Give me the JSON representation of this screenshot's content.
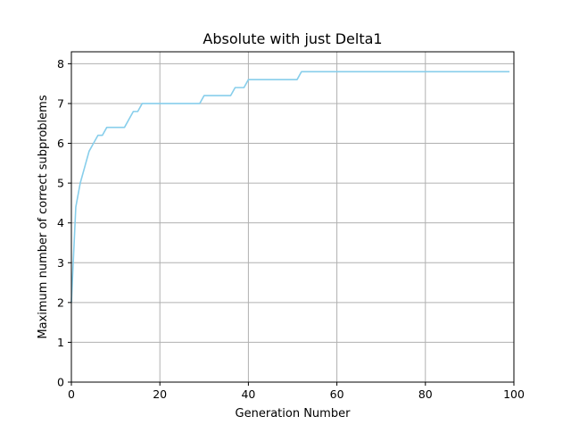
{
  "chart_data": {
    "type": "line",
    "title": "Absolute with just Delta1",
    "xlabel": "Generation Number",
    "ylabel": "Maximum number of correct subproblems",
    "xlim": [
      0,
      100
    ],
    "ylim": [
      0,
      8.3
    ],
    "xticks": [
      0,
      20,
      40,
      60,
      80,
      100
    ],
    "yticks": [
      0,
      1,
      2,
      3,
      4,
      5,
      6,
      7,
      8
    ],
    "grid": true,
    "colors": {
      "line": "#87ceeb",
      "grid": "#b0b0b0",
      "axes": "#000000"
    },
    "series": [
      {
        "x": [
          0,
          1,
          2,
          3,
          4,
          5,
          6,
          7,
          8,
          9,
          10,
          11,
          12,
          13,
          14,
          15,
          16,
          17,
          18,
          19,
          20,
          21,
          22,
          23,
          24,
          25,
          26,
          27,
          28,
          29,
          30,
          31,
          32,
          33,
          34,
          35,
          36,
          37,
          38,
          39,
          40,
          41,
          42,
          43,
          44,
          45,
          46,
          47,
          48,
          49,
          50,
          51,
          52,
          53,
          54,
          55,
          56,
          57,
          58,
          59,
          60,
          61,
          62,
          63,
          64,
          65,
          66,
          67,
          68,
          69,
          70,
          71,
          72,
          73,
          74,
          75,
          76,
          77,
          78,
          79,
          80,
          81,
          82,
          83,
          84,
          85,
          86,
          87,
          88,
          89,
          90,
          91,
          92,
          93,
          94,
          95,
          96,
          97,
          98,
          99
        ],
        "values": [
          2.0,
          4.4,
          5.0,
          5.4,
          5.8,
          6.0,
          6.2,
          6.2,
          6.4,
          6.4,
          6.4,
          6.4,
          6.4,
          6.6,
          6.8,
          6.8,
          7.0,
          7.0,
          7.0,
          7.0,
          7.0,
          7.0,
          7.0,
          7.0,
          7.0,
          7.0,
          7.0,
          7.0,
          7.0,
          7.0,
          7.2,
          7.2,
          7.2,
          7.2,
          7.2,
          7.2,
          7.2,
          7.4,
          7.4,
          7.4,
          7.6,
          7.6,
          7.6,
          7.6,
          7.6,
          7.6,
          7.6,
          7.6,
          7.6,
          7.6,
          7.6,
          7.6,
          7.8,
          7.8,
          7.8,
          7.8,
          7.8,
          7.8,
          7.8,
          7.8,
          7.8,
          7.8,
          7.8,
          7.8,
          7.8,
          7.8,
          7.8,
          7.8,
          7.8,
          7.8,
          7.8,
          7.8,
          7.8,
          7.8,
          7.8,
          7.8,
          7.8,
          7.8,
          7.8,
          7.8,
          7.8,
          7.8,
          7.8,
          7.8,
          7.8,
          7.8,
          7.8,
          7.8,
          7.8,
          7.8,
          7.8,
          7.8,
          7.8,
          7.8,
          7.8,
          7.8,
          7.8,
          7.8,
          7.8,
          7.8
        ]
      }
    ]
  }
}
